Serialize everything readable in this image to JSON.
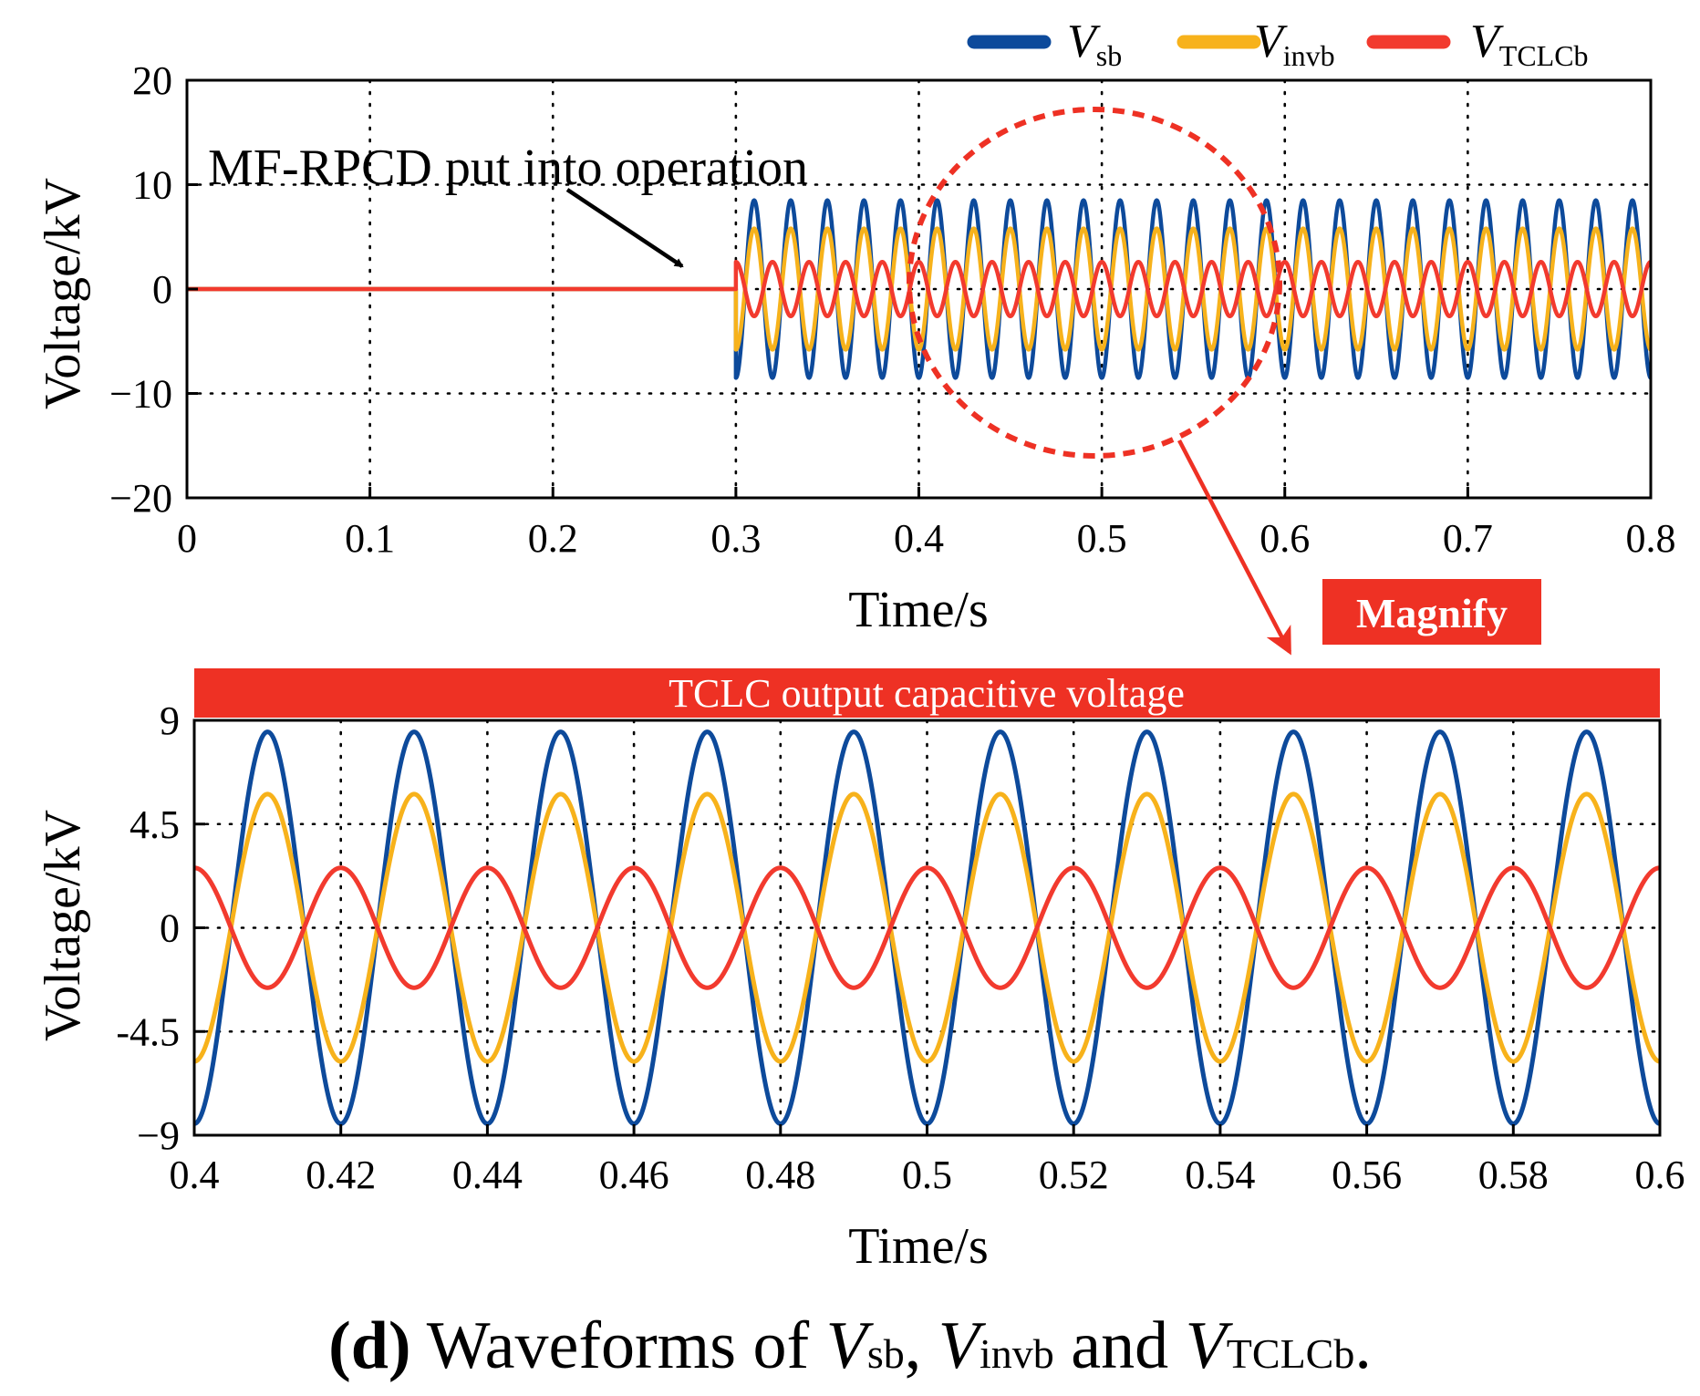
{
  "colors": {
    "vsb": "#0d4a9b",
    "vinvb": "#f7b21b",
    "vtclcb": "#f23a2e",
    "highlight": "#ee3124",
    "highlight_text": "#ffffff"
  },
  "legend": {
    "items": [
      {
        "main": "V",
        "sub": "sb",
        "color_key": "vsb"
      },
      {
        "main": "V",
        "sub": "invb",
        "color_key": "vinvb"
      },
      {
        "main": "V",
        "sub": "TCLCb",
        "color_key": "vtclcb"
      }
    ]
  },
  "top_plot": {
    "annotation": "MF-RPCD put into operation",
    "magnify_label": "Magnify"
  },
  "bottom_plot": {
    "banner": "TCLC output capacitive voltage"
  },
  "caption": {
    "panel": "(d)",
    "text1": " Waveforms of ",
    "v1": "V",
    "s1": "sb",
    "sep": ", ",
    "v2": "V",
    "s2": "invb",
    "and": " and ",
    "v3": "V",
    "s3": "TCLCb",
    "end": "."
  },
  "chart_data": [
    {
      "type": "line",
      "title": "",
      "xlabel": "Time/s",
      "ylabel": "Voltage/kV",
      "xlim": [
        0,
        0.8
      ],
      "ylim": [
        -20,
        20
      ],
      "xticks": [
        0,
        0.1,
        0.2,
        0.3,
        0.4,
        0.5,
        0.6,
        0.7,
        0.8
      ],
      "xtick_labels": [
        "0",
        "0.1",
        "0.2",
        "0.3",
        "0.4",
        "0.5",
        "0.6",
        "0.7",
        "0.8"
      ],
      "yticks": [
        20,
        10,
        0,
        -10,
        -20
      ],
      "ytick_labels": [
        "20",
        "10",
        "0",
        "−10",
        "−20"
      ],
      "grid": true,
      "legend_position": "top-right",
      "event_time": 0.3,
      "frequency_hz": 50,
      "series": [
        {
          "name": "Vsb",
          "color_key": "vsb",
          "amplitude": 8.5,
          "phase_deg": -90,
          "starts_at": 0.3
        },
        {
          "name": "Vinvb",
          "color_key": "vinvb",
          "amplitude": 5.8,
          "phase_deg": -90,
          "starts_at": 0.3
        },
        {
          "name": "VTCLCb",
          "color_key": "vtclcb",
          "amplitude": 2.6,
          "phase_deg": 90,
          "starts_at": 0.3
        }
      ]
    },
    {
      "type": "line",
      "title": "TCLC output capacitive voltage",
      "xlabel": "Time/s",
      "ylabel": "Voltage/kV",
      "xlim": [
        0.4,
        0.6
      ],
      "ylim": [
        -9,
        9
      ],
      "xticks": [
        0.4,
        0.42,
        0.44,
        0.46,
        0.48,
        0.5,
        0.52,
        0.54,
        0.56,
        0.58,
        0.6
      ],
      "xtick_labels": [
        "0.4",
        "0.42",
        "0.44",
        "0.46",
        "0.48",
        "0.5",
        "0.52",
        "0.54",
        "0.56",
        "0.58",
        "0.6"
      ],
      "yticks": [
        9,
        4.5,
        0,
        -4.5,
        -9
      ],
      "ytick_labels": [
        "9",
        "4.5",
        "0",
        "-4.5",
        "−9"
      ],
      "grid": true,
      "frequency_hz": 50,
      "series": [
        {
          "name": "Vsb",
          "color_key": "vsb",
          "amplitude": 8.5,
          "phase_deg": -90
        },
        {
          "name": "Vinvb",
          "color_key": "vinvb",
          "amplitude": 5.8,
          "phase_deg": -90
        },
        {
          "name": "VTCLCb",
          "color_key": "vtclcb",
          "amplitude": 2.6,
          "phase_deg": 90
        }
      ]
    }
  ]
}
